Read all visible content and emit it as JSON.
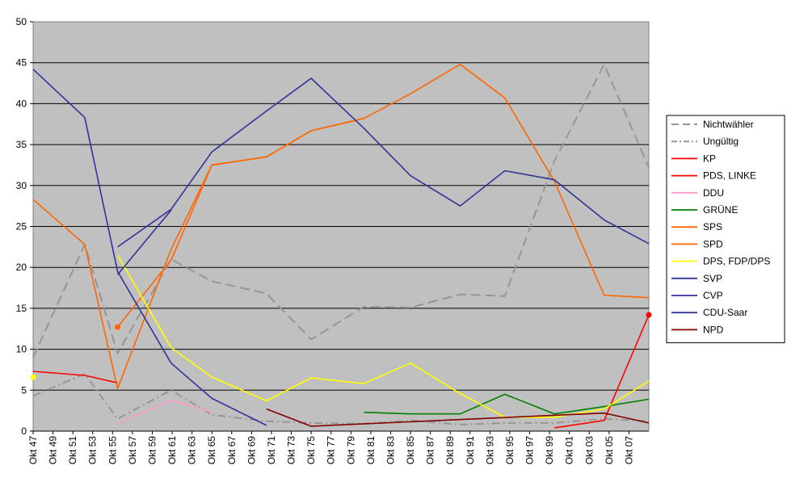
{
  "chart_data": {
    "type": "line",
    "title": "",
    "xlabel": "",
    "ylabel": "",
    "ylim": [
      0,
      50
    ],
    "yticks": [
      0,
      5,
      10,
      15,
      20,
      25,
      30,
      35,
      40,
      45,
      50
    ],
    "xlim": [
      1947,
      2009
    ],
    "xticks": [
      "Okt 47",
      "Okt 49",
      "Okt 51",
      "Okt 53",
      "Okt 55",
      "Okt 57",
      "Okt 59",
      "Okt 61",
      "Okt 63",
      "Okt 65",
      "Okt 67",
      "Okt 69",
      "Okt 71",
      "Okt 73",
      "Okt 75",
      "Okt 77",
      "Okt 79",
      "Okt 81",
      "Okt 83",
      "Okt 85",
      "Okt 87",
      "Okt 89",
      "Okt 91",
      "Okt 93",
      "Okt 95",
      "Okt 97",
      "Okt 99",
      "Okt 01",
      "Okt 03",
      "Okt 05",
      "Okt 07"
    ],
    "grid": true,
    "plot_background": "#c0c0c0",
    "legend_position": "right",
    "series": [
      {
        "name": "Nichtwähler",
        "color": "#969696",
        "dash": "long-dash",
        "points": [
          [
            1947,
            9.0
          ],
          [
            1952.2,
            22.8
          ],
          [
            1955.5,
            9.5
          ],
          [
            1960.9,
            21.0
          ],
          [
            1965,
            18.3
          ],
          [
            1970.5,
            16.8
          ],
          [
            1975,
            11.2
          ],
          [
            1980.3,
            15.2
          ],
          [
            1985,
            15.1
          ],
          [
            1990,
            16.7
          ],
          [
            1994.5,
            16.5
          ],
          [
            1999.5,
            33.0
          ],
          [
            2004.5,
            44.8
          ],
          [
            2009,
            32.2
          ]
        ]
      },
      {
        "name": "Ungültig",
        "color": "#969696",
        "dash": "dash-dot",
        "points": [
          [
            1947,
            4.3
          ],
          [
            1952.2,
            7.0
          ],
          [
            1955.5,
            1.5
          ],
          [
            1960.9,
            5.0
          ],
          [
            1965,
            2.0
          ],
          [
            1970.5,
            1.2
          ],
          [
            1975,
            1.0
          ],
          [
            1980.3,
            0.9
          ],
          [
            1985,
            1.3
          ],
          [
            1990,
            0.8
          ],
          [
            1994.5,
            1.0
          ],
          [
            1999.5,
            1.0
          ],
          [
            2004.5,
            1.5
          ],
          [
            2009,
            1.2
          ]
        ]
      },
      {
        "name": "KP",
        "color": "#ff0000",
        "dash": "solid",
        "points": [
          [
            1947,
            7.3
          ],
          [
            1952.2,
            6.8
          ],
          [
            1955.5,
            5.9
          ]
        ]
      },
      {
        "name": "PDS, LINKE",
        "color": "#ff0000",
        "dash": "solid",
        "points": [
          [
            1999.5,
            0.4
          ],
          [
            2004.5,
            1.3
          ],
          [
            2009,
            14.2
          ]
        ]
      },
      {
        "name": "DDU",
        "color": "#ff99cc",
        "dash": "solid",
        "points": [
          [
            1955.5,
            0.9
          ],
          [
            1960.9,
            3.8
          ],
          [
            1965,
            2.3
          ]
        ]
      },
      {
        "name": "GRÜNE",
        "color": "#008000",
        "dash": "solid",
        "points": [
          [
            1980.3,
            2.3
          ],
          [
            1985,
            2.1
          ],
          [
            1990,
            2.1
          ],
          [
            1994.5,
            4.5
          ],
          [
            1999.5,
            2.1
          ],
          [
            2004.5,
            3.0
          ],
          [
            2009,
            3.9
          ]
        ]
      },
      {
        "name": "SPS",
        "color": "#ff6600",
        "dash": "solid",
        "points": [
          [
            1947,
            28.3
          ],
          [
            1952.2,
            22.8
          ],
          [
            1955.5,
            5.2
          ],
          [
            1960.9,
            22.2
          ],
          [
            1965,
            32.5
          ],
          [
            1970.5,
            33.5
          ],
          [
            1975,
            36.7
          ],
          [
            1980.3,
            38.2
          ]
        ]
      },
      {
        "name": "SPD",
        "color": "#ff6600",
        "dash": "solid",
        "points": [
          [
            1955.5,
            12.7
          ],
          [
            1960.9,
            20.9
          ],
          [
            1965,
            32.5
          ],
          [
            1970.5,
            33.5
          ],
          [
            1975,
            36.7
          ],
          [
            1980.3,
            38.2
          ],
          [
            1985,
            41.2
          ],
          [
            1990,
            44.8
          ],
          [
            1994.5,
            40.7
          ],
          [
            1999.5,
            30.5
          ],
          [
            2004.5,
            16.6
          ],
          [
            2009,
            16.3
          ]
        ]
      },
      {
        "name": "DPS, FDP/DPS",
        "color": "#ffff00",
        "dash": "solid",
        "points": [
          [
            1955.5,
            21.5
          ],
          [
            1960.9,
            10.2
          ],
          [
            1965,
            6.6
          ],
          [
            1970.5,
            3.7
          ],
          [
            1975,
            6.5
          ],
          [
            1980.3,
            5.8
          ],
          [
            1985,
            8.3
          ],
          [
            1990,
            4.6
          ],
          [
            1994.5,
            1.7
          ],
          [
            1999.5,
            1.7
          ],
          [
            2004.5,
            2.7
          ],
          [
            2009,
            6.1
          ]
        ]
      },
      {
        "name": "SVP",
        "color": "#333399",
        "dash": "solid",
        "points": [
          [
            1947,
            44.2
          ],
          [
            1952.2,
            38.3
          ],
          [
            1955.5,
            19.5
          ],
          [
            1960.9,
            8.3
          ],
          [
            1965,
            4.0
          ],
          [
            1970.5,
            0.7
          ]
        ]
      },
      {
        "name": "CVP",
        "color": "#333399",
        "dash": "solid",
        "points": [
          [
            1955.5,
            19.1
          ],
          [
            1960.9,
            27.0
          ]
        ]
      },
      {
        "name": "CDU-Saar",
        "color": "#333399",
        "dash": "solid",
        "points": [
          [
            1955.5,
            22.5
          ],
          [
            1960.9,
            27.1
          ],
          [
            1965,
            34.1
          ],
          [
            1970.5,
            39.1
          ],
          [
            1975,
            43.1
          ],
          [
            1980.3,
            37.0
          ],
          [
            1985,
            31.2
          ],
          [
            1990,
            27.5
          ],
          [
            1994.5,
            31.8
          ],
          [
            1999.5,
            30.7
          ],
          [
            2004.5,
            25.8
          ],
          [
            2009,
            22.9
          ]
        ]
      },
      {
        "name": "NPD",
        "color": "#800000",
        "dash": "solid",
        "points": [
          [
            1970.5,
            2.7
          ],
          [
            1975,
            0.6
          ],
          [
            2004.5,
            2.2
          ],
          [
            2009,
            1.0
          ]
        ]
      }
    ],
    "markers": [
      {
        "series": "SPD",
        "color": "#ff6600",
        "x": 1955.5,
        "y": 12.7
      },
      {
        "series": "PDS, LINKE",
        "color": "#ff0000",
        "x": 2009,
        "y": 14.2
      },
      {
        "series": "DPS, FDP/DPS",
        "color": "#ffff00",
        "x": 1947,
        "y": 6.6
      }
    ]
  }
}
